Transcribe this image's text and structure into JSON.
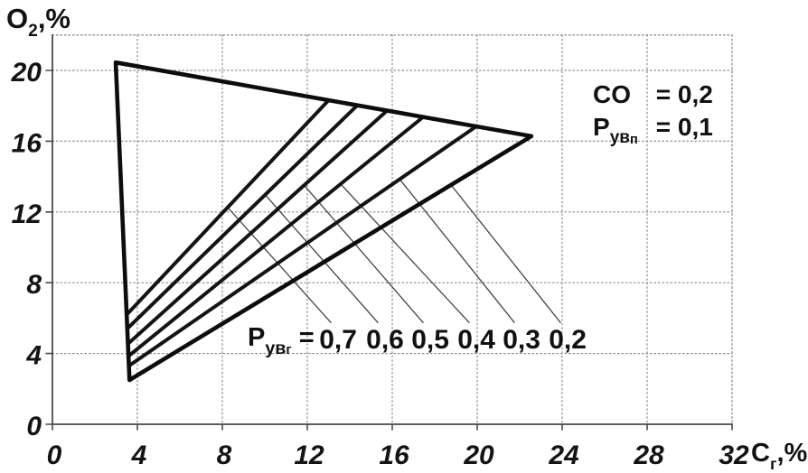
{
  "figure": {
    "y_axis_title": {
      "base": "O",
      "sub": "2",
      "rest": ",%"
    },
    "x_axis_title": {
      "base": "C",
      "sub": "г",
      "rest": ",%"
    },
    "annotation": {
      "line1_base": "CO",
      "line1_rest": " = 0,2",
      "line2_base": "Р",
      "line2_sub": "ув",
      "line2_sub2": "п",
      "line2_rest": " = 0,1"
    },
    "fan_label": {
      "base": "Р",
      "sub": "ув",
      "sub2": "г",
      "rest": " ="
    }
  },
  "chart_data": {
    "type": "line",
    "title": "",
    "xlabel": "Cг,%",
    "ylabel": "O2,%",
    "xlim": [
      0,
      32
    ],
    "ylim": [
      0,
      22
    ],
    "xticks": [
      0,
      4,
      8,
      12,
      16,
      20,
      24,
      28,
      32
    ],
    "yticks": [
      0,
      4,
      8,
      12,
      16,
      20
    ],
    "grid": "dotted",
    "legend_position": "none",
    "annotations": [
      "CO = 0,2",
      "Рувп = 0,1"
    ],
    "envelope": {
      "apex": [
        2.98,
        20.45
      ],
      "bottom": [
        3.63,
        2.5
      ],
      "tip": [
        22.55,
        16.28
      ]
    },
    "series": [
      {
        "name": "Рувг = 0,7",
        "points": [
          [
            3.5,
            6.2
          ],
          [
            13.0,
            18.31
          ]
        ]
      },
      {
        "name": "Рувг = 0,6",
        "points": [
          [
            3.52,
            5.4
          ],
          [
            14.35,
            18.02
          ]
        ]
      },
      {
        "name": "Рувг = 0,5",
        "points": [
          [
            3.56,
            4.55
          ],
          [
            15.75,
            17.72
          ]
        ]
      },
      {
        "name": "Рувг = 0,4",
        "points": [
          [
            3.58,
            3.85
          ],
          [
            17.45,
            17.36
          ]
        ]
      },
      {
        "name": "Рувг = 0,3",
        "points": [
          [
            3.6,
            3.3
          ],
          [
            19.95,
            16.83
          ]
        ]
      },
      {
        "name": "Рувг = 0,2",
        "points": [
          [
            3.63,
            2.5
          ],
          [
            22.55,
            16.28
          ]
        ]
      }
    ],
    "fan_values": [
      {
        "label": "0,7",
        "label_x": 13.45,
        "leader_from": [
          8.25,
          12.26
        ]
      },
      {
        "label": "0,6",
        "label_x": 15.66,
        "leader_from": [
          10.02,
          12.97
        ]
      },
      {
        "label": "0,5",
        "label_x": 17.79,
        "leader_from": [
          11.85,
          13.51
        ]
      },
      {
        "label": "0,4",
        "label_x": 19.96,
        "leader_from": [
          13.57,
          13.58
        ]
      },
      {
        "label": "0,3",
        "label_x": 22.09,
        "leader_from": [
          16.35,
          13.85
        ]
      },
      {
        "label": "0,2",
        "label_x": 24.26,
        "leader_from": [
          18.77,
          13.52
        ]
      }
    ],
    "leader_end_y": 5.75,
    "value_label_center_y": 4.75
  },
  "style": {
    "line_color": "#0d0d0d",
    "fan_color": "#141414",
    "grid_color": "#8a8a8a",
    "frame_color": "#4a4a4a",
    "leader_color": "#454545",
    "text_color": "#141414",
    "background": "#ffffff"
  }
}
